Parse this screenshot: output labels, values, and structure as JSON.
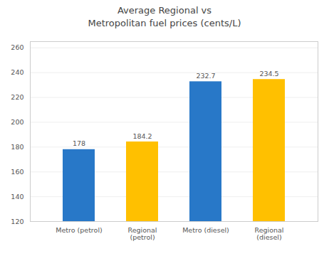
{
  "chart_data": {
    "type": "bar",
    "title": "Average Regional vs\nMetropolitan fuel prices (cents/L)",
    "categories": [
      "Metro (petrol)",
      "Regional\n(petrol)",
      "Metro (diesel)",
      "Regional\n(diesel)"
    ],
    "values": [
      178,
      184.2,
      232.7,
      234.5
    ],
    "colors": [
      "#2878C8",
      "#FFC000",
      "#2878C8",
      "#FFC000"
    ],
    "ylim": [
      120,
      265
    ],
    "yticks": [
      120,
      140,
      160,
      180,
      200,
      220,
      240,
      260
    ],
    "grid": true,
    "data_labels": true
  }
}
